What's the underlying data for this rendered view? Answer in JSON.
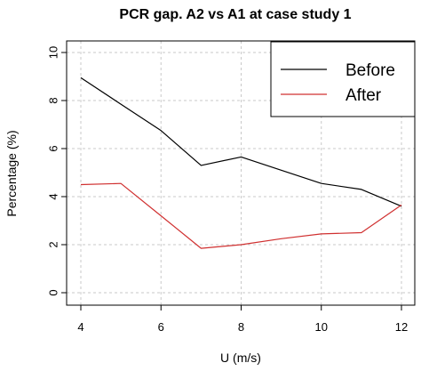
{
  "chart_data": {
    "type": "line",
    "title": "PCR gap. A2 vs A1 at case study 1",
    "xlabel": "U (m/s)",
    "ylabel": "Percentage (%)",
    "xlim": [
      4,
      12
    ],
    "ylim": [
      0,
      10
    ],
    "xticks": [
      "4",
      "6",
      "8",
      "10",
      "12"
    ],
    "yticks": [
      "0",
      "2",
      "4",
      "6",
      "8",
      "10"
    ],
    "grid": true,
    "legend_position": "top-right",
    "series": [
      {
        "name": "Before",
        "color": "#000000",
        "x": [
          4,
          5,
          6,
          7,
          8,
          9,
          10,
          11,
          12
        ],
        "y": [
          8.95,
          7.85,
          6.75,
          5.3,
          5.65,
          5.1,
          4.55,
          4.3,
          3.6
        ]
      },
      {
        "name": "After",
        "color": "#d03030",
        "x": [
          4,
          5,
          6,
          7,
          8,
          9,
          10,
          11,
          12
        ],
        "y": [
          4.5,
          4.55,
          3.2,
          1.85,
          2.0,
          2.25,
          2.45,
          2.5,
          3.65
        ]
      }
    ]
  }
}
